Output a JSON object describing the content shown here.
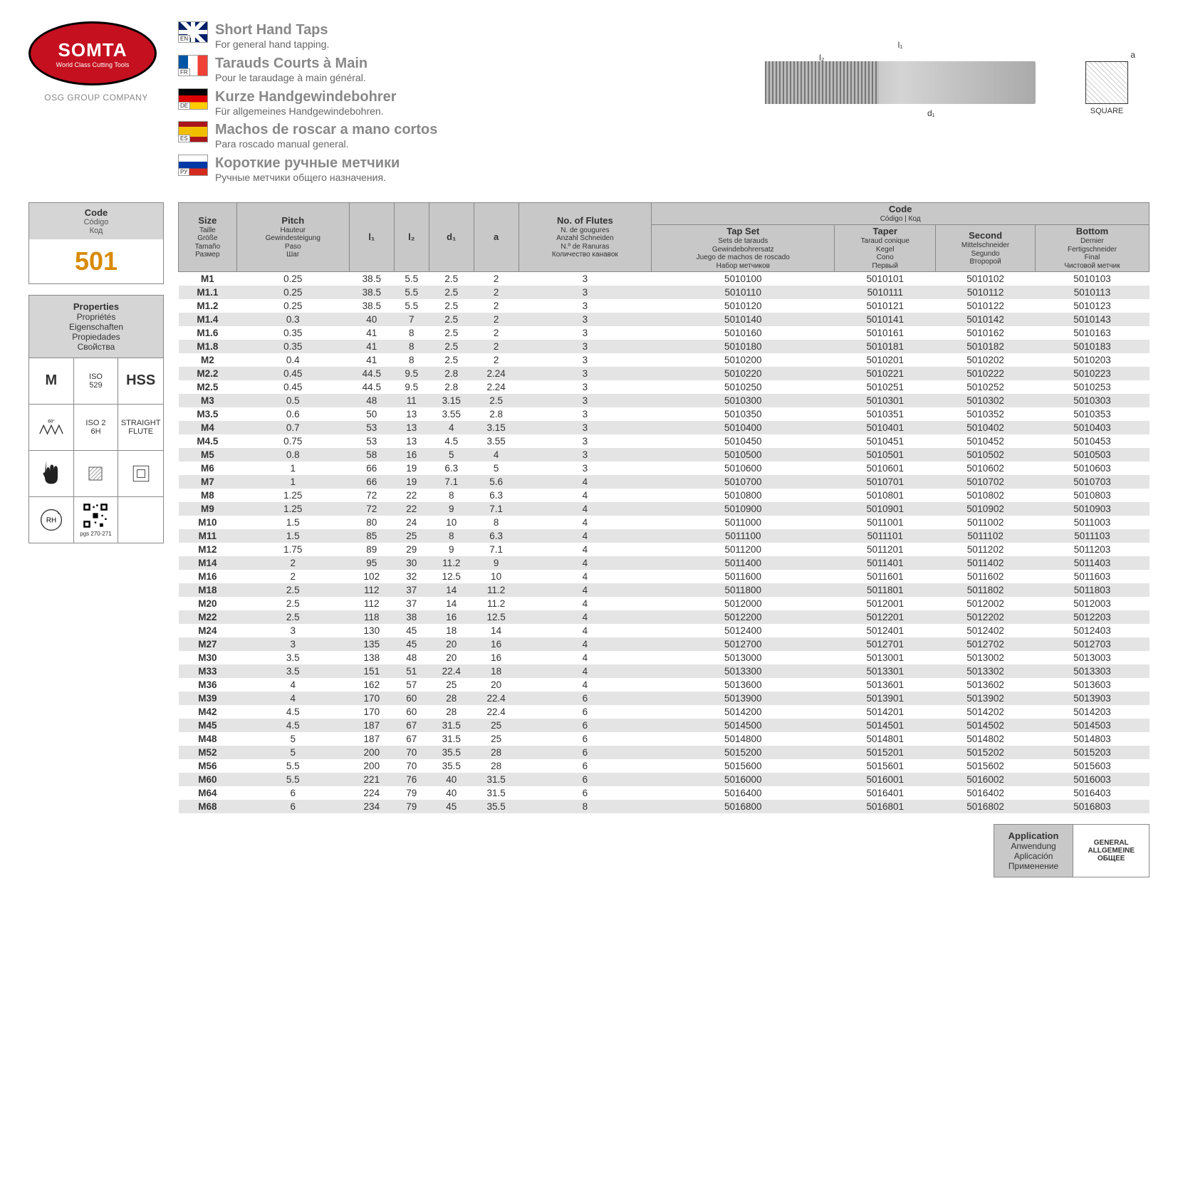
{
  "logo": {
    "brand": "SOMTA",
    "tagline": "World Class Cutting Tools",
    "group": "OSG GROUP COMPANY"
  },
  "titles": [
    {
      "lang": "EN",
      "flag": "en",
      "main": "Short Hand Taps",
      "sub": "For general hand tapping."
    },
    {
      "lang": "FR",
      "flag": "fr",
      "main": "Tarauds Courts à Main",
      "sub": "Pour le taraudage à main général."
    },
    {
      "lang": "DE",
      "flag": "de",
      "main": "Kurze Handgewindebohrer",
      "sub": "Für allgemeines Handgewindebohren."
    },
    {
      "lang": "ES",
      "flag": "es",
      "main": "Machos de roscar a mano cortos",
      "sub": "Para roscado manual general."
    },
    {
      "lang": "РУ",
      "flag": "ru",
      "main": "Короткие ручные метчики",
      "sub": "Ручные метчики общего назначения."
    }
  ],
  "diagram": {
    "l1": "l₁",
    "l2": "l₂",
    "d1": "d₁",
    "a": "a",
    "square": "SQUARE"
  },
  "codebox": {
    "head_main": "Code",
    "head_subs": [
      "Código",
      "Код"
    ],
    "value": "501"
  },
  "properties": {
    "head_main": "Properties",
    "head_subs": [
      "Propriétés",
      "Eigenschaften",
      "Propiedades",
      "Свойства"
    ],
    "cells": [
      {
        "type": "text-big",
        "val": "M"
      },
      {
        "type": "text",
        "lines": [
          "ISO",
          "529"
        ]
      },
      {
        "type": "text-big",
        "val": "HSS"
      },
      {
        "type": "thread60",
        "label": "60°"
      },
      {
        "type": "text",
        "lines": [
          "ISO 2",
          "6H"
        ]
      },
      {
        "type": "text",
        "lines": [
          "STRAIGHT",
          "FLUTE"
        ]
      },
      {
        "type": "hand"
      },
      {
        "type": "sq-hatch"
      },
      {
        "type": "sq-outline"
      },
      {
        "type": "rh",
        "label": "RH"
      },
      {
        "type": "qr",
        "label": "pgs 270-271"
      },
      {
        "type": "empty"
      }
    ]
  },
  "table": {
    "head1": {
      "size": {
        "main": "Size",
        "subs": [
          "Taille",
          "Größe",
          "Tamaño",
          "Размер"
        ]
      },
      "pitch": {
        "main": "Pitch",
        "subs": [
          "Hauteur",
          "Gewindesteigung",
          "Paso",
          "Шаг"
        ]
      },
      "l1": "l₁",
      "l2": "l₂",
      "d1": "d₁",
      "a": "a",
      "flutes": {
        "main": "No. of Flutes",
        "subs": [
          "N. de gougures",
          "Anzahl Schneiden",
          "N.º de Ranuras",
          "Количество канавок"
        ]
      },
      "code": {
        "main": "Code",
        "subs": [
          "Código | Код"
        ]
      },
      "tapset": {
        "main": "Tap Set",
        "subs": [
          "Sets de tarauds",
          "Gewindebohrersatz",
          "Juego de machos de roscado",
          "Набор метчиков"
        ]
      },
      "taper": {
        "main": "Taper",
        "subs": [
          "Taraud conique",
          "Kegel",
          "Cono",
          "Первый"
        ]
      },
      "second": {
        "main": "Second",
        "subs": [
          "Mittelschneider",
          "Segundo",
          "Второрой"
        ]
      },
      "bottom": {
        "main": "Bottom",
        "subs": [
          "Dernier",
          "Fertigschneider",
          "Final",
          "Чистовой метчик"
        ]
      }
    },
    "rows": [
      [
        "M1",
        "0.25",
        "38.5",
        "5.5",
        "2.5",
        "2",
        "3",
        "5010100",
        "5010101",
        "5010102",
        "5010103"
      ],
      [
        "M1.1",
        "0.25",
        "38.5",
        "5.5",
        "2.5",
        "2",
        "3",
        "5010110",
        "5010111",
        "5010112",
        "5010113"
      ],
      [
        "M1.2",
        "0.25",
        "38.5",
        "5.5",
        "2.5",
        "2",
        "3",
        "5010120",
        "5010121",
        "5010122",
        "5010123"
      ],
      [
        "M1.4",
        "0.3",
        "40",
        "7",
        "2.5",
        "2",
        "3",
        "5010140",
        "5010141",
        "5010142",
        "5010143"
      ],
      [
        "M1.6",
        "0.35",
        "41",
        "8",
        "2.5",
        "2",
        "3",
        "5010160",
        "5010161",
        "5010162",
        "5010163"
      ],
      [
        "M1.8",
        "0.35",
        "41",
        "8",
        "2.5",
        "2",
        "3",
        "5010180",
        "5010181",
        "5010182",
        "5010183"
      ],
      [
        "M2",
        "0.4",
        "41",
        "8",
        "2.5",
        "2",
        "3",
        "5010200",
        "5010201",
        "5010202",
        "5010203"
      ],
      [
        "M2.2",
        "0.45",
        "44.5",
        "9.5",
        "2.8",
        "2.24",
        "3",
        "5010220",
        "5010221",
        "5010222",
        "5010223"
      ],
      [
        "M2.5",
        "0.45",
        "44.5",
        "9.5",
        "2.8",
        "2.24",
        "3",
        "5010250",
        "5010251",
        "5010252",
        "5010253"
      ],
      [
        "M3",
        "0.5",
        "48",
        "11",
        "3.15",
        "2.5",
        "3",
        "5010300",
        "5010301",
        "5010302",
        "5010303"
      ],
      [
        "M3.5",
        "0.6",
        "50",
        "13",
        "3.55",
        "2.8",
        "3",
        "5010350",
        "5010351",
        "5010352",
        "5010353"
      ],
      [
        "M4",
        "0.7",
        "53",
        "13",
        "4",
        "3.15",
        "3",
        "5010400",
        "5010401",
        "5010402",
        "5010403"
      ],
      [
        "M4.5",
        "0.75",
        "53",
        "13",
        "4.5",
        "3.55",
        "3",
        "5010450",
        "5010451",
        "5010452",
        "5010453"
      ],
      [
        "M5",
        "0.8",
        "58",
        "16",
        "5",
        "4",
        "3",
        "5010500",
        "5010501",
        "5010502",
        "5010503"
      ],
      [
        "M6",
        "1",
        "66",
        "19",
        "6.3",
        "5",
        "3",
        "5010600",
        "5010601",
        "5010602",
        "5010603"
      ],
      [
        "M7",
        "1",
        "66",
        "19",
        "7.1",
        "5.6",
        "4",
        "5010700",
        "5010701",
        "5010702",
        "5010703"
      ],
      [
        "M8",
        "1.25",
        "72",
        "22",
        "8",
        "6.3",
        "4",
        "5010800",
        "5010801",
        "5010802",
        "5010803"
      ],
      [
        "M9",
        "1.25",
        "72",
        "22",
        "9",
        "7.1",
        "4",
        "5010900",
        "5010901",
        "5010902",
        "5010903"
      ],
      [
        "M10",
        "1.5",
        "80",
        "24",
        "10",
        "8",
        "4",
        "5011000",
        "5011001",
        "5011002",
        "5011003"
      ],
      [
        "M11",
        "1.5",
        "85",
        "25",
        "8",
        "6.3",
        "4",
        "5011100",
        "5011101",
        "5011102",
        "5011103"
      ],
      [
        "M12",
        "1.75",
        "89",
        "29",
        "9",
        "7.1",
        "4",
        "5011200",
        "5011201",
        "5011202",
        "5011203"
      ],
      [
        "M14",
        "2",
        "95",
        "30",
        "11.2",
        "9",
        "4",
        "5011400",
        "5011401",
        "5011402",
        "5011403"
      ],
      [
        "M16",
        "2",
        "102",
        "32",
        "12.5",
        "10",
        "4",
        "5011600",
        "5011601",
        "5011602",
        "5011603"
      ],
      [
        "M18",
        "2.5",
        "112",
        "37",
        "14",
        "11.2",
        "4",
        "5011800",
        "5011801",
        "5011802",
        "5011803"
      ],
      [
        "M20",
        "2.5",
        "112",
        "37",
        "14",
        "11.2",
        "4",
        "5012000",
        "5012001",
        "5012002",
        "5012003"
      ],
      [
        "M22",
        "2.5",
        "118",
        "38",
        "16",
        "12.5",
        "4",
        "5012200",
        "5012201",
        "5012202",
        "5012203"
      ],
      [
        "M24",
        "3",
        "130",
        "45",
        "18",
        "14",
        "4",
        "5012400",
        "5012401",
        "5012402",
        "5012403"
      ],
      [
        "M27",
        "3",
        "135",
        "45",
        "20",
        "16",
        "4",
        "5012700",
        "5012701",
        "5012702",
        "5012703"
      ],
      [
        "M30",
        "3.5",
        "138",
        "48",
        "20",
        "16",
        "4",
        "5013000",
        "5013001",
        "5013002",
        "5013003"
      ],
      [
        "M33",
        "3.5",
        "151",
        "51",
        "22.4",
        "18",
        "4",
        "5013300",
        "5013301",
        "5013302",
        "5013303"
      ],
      [
        "M36",
        "4",
        "162",
        "57",
        "25",
        "20",
        "4",
        "5013600",
        "5013601",
        "5013602",
        "5013603"
      ],
      [
        "M39",
        "4",
        "170",
        "60",
        "28",
        "22.4",
        "6",
        "5013900",
        "5013901",
        "5013902",
        "5013903"
      ],
      [
        "M42",
        "4.5",
        "170",
        "60",
        "28",
        "22.4",
        "6",
        "5014200",
        "5014201",
        "5014202",
        "5014203"
      ],
      [
        "M45",
        "4.5",
        "187",
        "67",
        "31.5",
        "25",
        "6",
        "5014500",
        "5014501",
        "5014502",
        "5014503"
      ],
      [
        "M48",
        "5",
        "187",
        "67",
        "31.5",
        "25",
        "6",
        "5014800",
        "5014801",
        "5014802",
        "5014803"
      ],
      [
        "M52",
        "5",
        "200",
        "70",
        "35.5",
        "28",
        "6",
        "5015200",
        "5015201",
        "5015202",
        "5015203"
      ],
      [
        "M56",
        "5.5",
        "200",
        "70",
        "35.5",
        "28",
        "6",
        "5015600",
        "5015601",
        "5015602",
        "5015603"
      ],
      [
        "M60",
        "5.5",
        "221",
        "76",
        "40",
        "31.5",
        "6",
        "5016000",
        "5016001",
        "5016002",
        "5016003"
      ],
      [
        "M64",
        "6",
        "224",
        "79",
        "40",
        "31.5",
        "6",
        "5016400",
        "5016401",
        "5016402",
        "5016403"
      ],
      [
        "M68",
        "6",
        "234",
        "79",
        "45",
        "35.5",
        "8",
        "5016800",
        "5016801",
        "5016802",
        "5016803"
      ]
    ]
  },
  "application": {
    "head_main": "Application",
    "head_subs": [
      "Anwendung",
      "Aplicación",
      "Применение"
    ],
    "values": [
      "GENERAL",
      "ALLGEMEINE",
      "ОБЩЕЕ"
    ]
  },
  "colors": {
    "header_bg": "#c8c8c8",
    "row_alt": "#e4e4e4",
    "code_color": "#d98a00",
    "logo_bg": "#c4101f"
  }
}
